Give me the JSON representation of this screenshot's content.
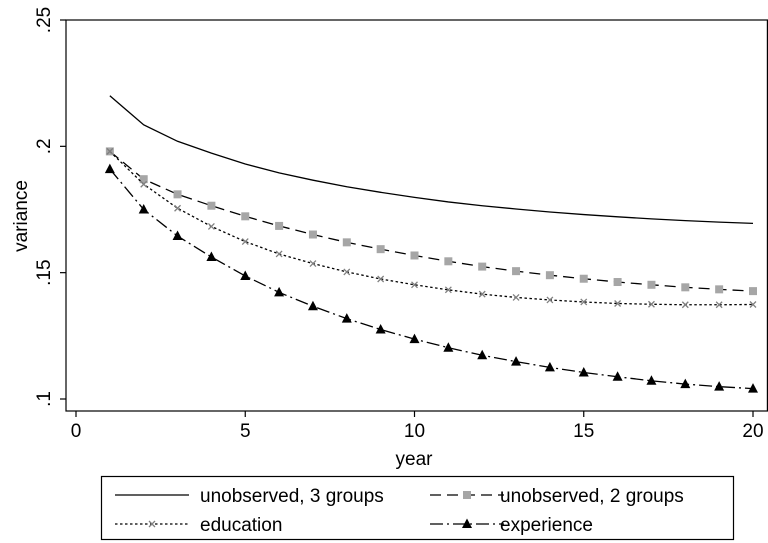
{
  "chart_data": {
    "type": "line",
    "title": "",
    "xlabel": "year",
    "ylabel": "variance",
    "xlim": [
      0,
      20
    ],
    "ylim": [
      0.1,
      0.25
    ],
    "x_ticks": [
      0,
      5,
      10,
      15,
      20
    ],
    "x_tick_labels": [
      "0",
      "5",
      "10",
      "15",
      "20"
    ],
    "y_ticks": [
      0.1,
      0.15,
      0.2,
      0.25
    ],
    "y_tick_labels": [
      ".1",
      ".15",
      ".2",
      ".25"
    ],
    "grid": false,
    "legend_position": "bottom",
    "x": [
      1,
      2,
      3,
      4,
      5,
      6,
      7,
      8,
      9,
      10,
      11,
      12,
      13,
      14,
      15,
      16,
      17,
      18,
      19,
      20
    ],
    "series": [
      {
        "name": "unobserved, 3 groups",
        "line": "solid",
        "marker": "none",
        "color": "#000000",
        "values": [
          0.22,
          0.2085,
          0.202,
          0.1973,
          0.193,
          0.1895,
          0.1866,
          0.184,
          0.1818,
          0.1798,
          0.178,
          0.1765,
          0.1752,
          0.174,
          0.173,
          0.1721,
          0.1713,
          0.1706,
          0.17,
          0.1695
        ]
      },
      {
        "name": "unobserved, 2 groups",
        "line": "dashed",
        "marker": "square",
        "color": "#000000",
        "marker_color": "#a6a6a6",
        "values": [
          0.198,
          0.187,
          0.181,
          0.1765,
          0.1723,
          0.1685,
          0.1651,
          0.162,
          0.1593,
          0.1568,
          0.1545,
          0.1524,
          0.1506,
          0.149,
          0.1476,
          0.1463,
          0.1452,
          0.1442,
          0.1434,
          0.1427
        ]
      },
      {
        "name": "education",
        "line": "dotted",
        "marker": "x",
        "color": "#000000",
        "marker_color": "#808080",
        "values": [
          0.198,
          0.185,
          0.1755,
          0.1683,
          0.1623,
          0.1574,
          0.1536,
          0.1503,
          0.1475,
          0.1452,
          0.1432,
          0.1415,
          0.1402,
          0.1392,
          0.1384,
          0.1378,
          0.1375,
          0.1373,
          0.1373,
          0.1374
        ]
      },
      {
        "name": "experience",
        "line": "dashdot",
        "marker": "triangle",
        "color": "#000000",
        "marker_color": "#000000",
        "values": [
          0.191,
          0.175,
          0.1645,
          0.1562,
          0.1487,
          0.1422,
          0.1367,
          0.1318,
          0.1275,
          0.1237,
          0.1203,
          0.1173,
          0.1148,
          0.1125,
          0.1105,
          0.1088,
          0.1072,
          0.1059,
          0.1049,
          0.1041
        ]
      }
    ]
  }
}
